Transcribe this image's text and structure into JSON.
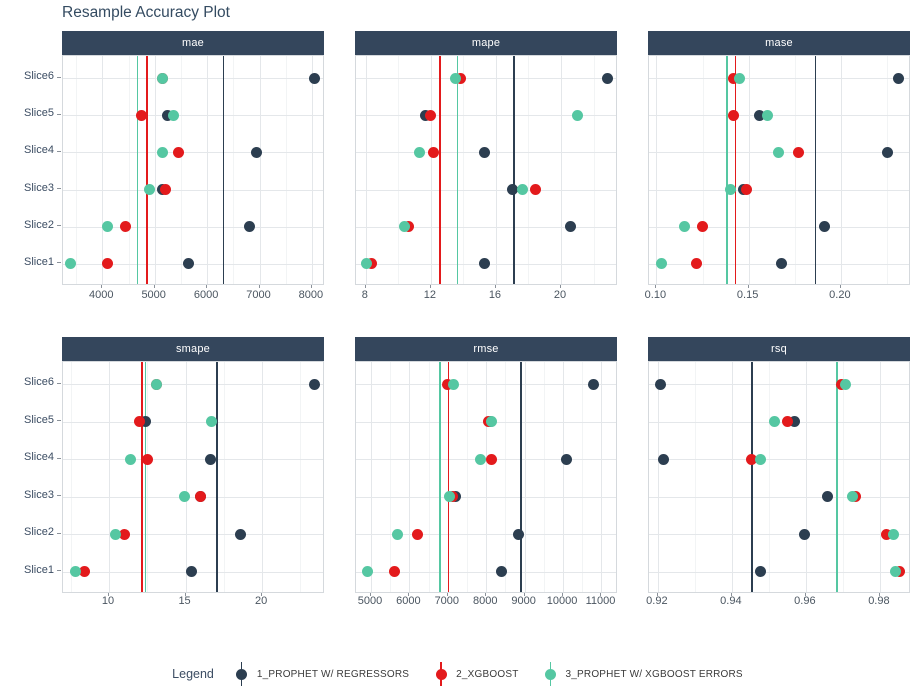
{
  "title": "Resample Accuracy Plot",
  "legend": {
    "title": "Legend",
    "entries": [
      {
        "label": "1_PROPHET W/ REGRESSORS",
        "color": "#2c3e50"
      },
      {
        "label": "2_XGBOOST",
        "color": "#e31a1c"
      },
      {
        "label": "3_PROPHET W/ XGBOOST ERRORS",
        "color": "#55c7a2"
      }
    ]
  },
  "slices_top_to_bottom": [
    "Slice6",
    "Slice5",
    "Slice4",
    "Slice3",
    "Slice2",
    "Slice1"
  ],
  "slices_order_of_values": [
    "Slice1",
    "Slice2",
    "Slice3",
    "Slice4",
    "Slice5",
    "Slice6"
  ],
  "colors": {
    "navy": "#2c3e50",
    "red": "#e31a1c",
    "teal": "#55c7a2",
    "strip_bg": "#34465c"
  },
  "chart_data": [
    {
      "type": "scatter",
      "metric": "mae",
      "xlim": [
        3250,
        8250
      ],
      "ticks": [
        {
          "v": 4000,
          "label": "4000"
        },
        {
          "v": 5000,
          "label": "5000"
        },
        {
          "v": 6000,
          "label": "6000"
        },
        {
          "v": 7000,
          "label": "7000"
        },
        {
          "v": 8000,
          "label": "8000"
        }
      ],
      "series": [
        {
          "name": "1_PROPHET W/ REGRESSORS",
          "color": "#2c3e50",
          "values": [
            5650,
            6800,
            5150,
            6950,
            5250,
            8050
          ]
        },
        {
          "name": "2_XGBOOST",
          "color": "#e31a1c",
          "values": [
            4100,
            4450,
            5200,
            5450,
            4750,
            5150
          ]
        },
        {
          "name": "3_PROPHET W/ XGBOOST ERRORS",
          "color": "#55c7a2",
          "values": [
            3400,
            4100,
            4900,
            5150,
            5350,
            5150
          ]
        }
      ],
      "mean_vlines": true
    },
    {
      "type": "scatter",
      "metric": "mape",
      "xlim": [
        7.4,
        23.5
      ],
      "ticks": [
        {
          "v": 8,
          "label": "8"
        },
        {
          "v": 12,
          "label": "12"
        },
        {
          "v": 16,
          "label": "16"
        },
        {
          "v": 20,
          "label": "20"
        }
      ],
      "series": [
        {
          "name": "1_PROPHET W/ REGRESSORS",
          "color": "#2c3e50",
          "values": [
            15.3,
            20.6,
            17.0,
            15.3,
            11.65,
            22.85
          ]
        },
        {
          "name": "2_XGBOOST",
          "color": "#e31a1c",
          "values": [
            8.35,
            10.65,
            18.4,
            12.15,
            11.95,
            13.85
          ]
        },
        {
          "name": "3_PROPHET W/ XGBOOST ERRORS",
          "color": "#55c7a2",
          "values": [
            8.05,
            10.35,
            17.65,
            11.3,
            21.0,
            13.5
          ]
        }
      ],
      "mean_vlines": true
    },
    {
      "type": "scatter",
      "metric": "mase",
      "xlim": [
        0.096,
        0.238
      ],
      "ticks": [
        {
          "v": 0.1,
          "label": "0.10"
        },
        {
          "v": 0.15,
          "label": "0.15"
        },
        {
          "v": 0.2,
          "label": "0.20"
        }
      ],
      "series": [
        {
          "name": "1_PROPHET W/ REGRESSORS",
          "color": "#2c3e50",
          "values": [
            0.168,
            0.191,
            0.147,
            0.225,
            0.156,
            0.231
          ]
        },
        {
          "name": "2_XGBOOST",
          "color": "#e31a1c",
          "values": [
            0.122,
            0.125,
            0.149,
            0.177,
            0.142,
            0.142
          ]
        },
        {
          "name": "3_PROPHET W/ XGBOOST ERRORS",
          "color": "#55c7a2",
          "values": [
            0.103,
            0.115,
            0.14,
            0.166,
            0.16,
            0.145
          ]
        }
      ],
      "mean_vlines": true
    },
    {
      "type": "scatter",
      "metric": "smape",
      "xlim": [
        7.0,
        24.1
      ],
      "ticks": [
        {
          "v": 10,
          "label": "10"
        },
        {
          "v": 15,
          "label": "15"
        },
        {
          "v": 20,
          "label": "20"
        }
      ],
      "series": [
        {
          "name": "1_PROPHET W/ REGRESSORS",
          "color": "#2c3e50",
          "values": [
            15.4,
            18.6,
            16.0,
            16.6,
            12.4,
            23.4
          ]
        },
        {
          "name": "2_XGBOOST",
          "color": "#e31a1c",
          "values": [
            8.4,
            11.0,
            16.0,
            12.5,
            12.0,
            13.1
          ]
        },
        {
          "name": "3_PROPHET W/ XGBOOST ERRORS",
          "color": "#55c7a2",
          "values": [
            7.8,
            10.4,
            14.9,
            11.4,
            16.7,
            13.1
          ]
        }
      ],
      "mean_vlines": true
    },
    {
      "type": "scatter",
      "metric": "rmse",
      "xlim": [
        4610,
        11430
      ],
      "ticks": [
        {
          "v": 5000,
          "label": "5000"
        },
        {
          "v": 6000,
          "label": "6000"
        },
        {
          "v": 7000,
          "label": "7000"
        },
        {
          "v": 8000,
          "label": "8000"
        },
        {
          "v": 9000,
          "label": "9000"
        },
        {
          "v": 10000,
          "label": "10000"
        },
        {
          "v": 11000,
          "label": "11000"
        }
      ],
      "series": [
        {
          "name": "1_PROPHET W/ REGRESSORS",
          "color": "#2c3e50",
          "values": [
            8400,
            8850,
            7200,
            10100,
            8100,
            10800
          ]
        },
        {
          "name": "2_XGBOOST",
          "color": "#e31a1c",
          "values": [
            5600,
            6200,
            7130,
            8150,
            8050,
            7000
          ]
        },
        {
          "name": "3_PROPHET W/ XGBOOST ERRORS",
          "color": "#55c7a2",
          "values": [
            4900,
            5700,
            7050,
            7850,
            8150,
            7150
          ]
        }
      ],
      "mean_vlines": true
    },
    {
      "type": "scatter",
      "metric": "rsq",
      "xlim": [
        0.9176,
        0.9884
      ],
      "ticks": [
        {
          "v": 0.92,
          "label": "0.92"
        },
        {
          "v": 0.94,
          "label": "0.94"
        },
        {
          "v": 0.96,
          "label": "0.96"
        },
        {
          "v": 0.98,
          "label": "0.98"
        }
      ],
      "series": [
        {
          "name": "1_PROPHET W/ REGRESSORS",
          "color": "#2c3e50",
          "values": [
            0.9476,
            0.9597,
            0.9659,
            0.9216,
            0.957,
            0.9206
          ]
        },
        {
          "name": "2_XGBOOST",
          "color": "#e31a1c",
          "values": [
            0.9852,
            0.9819,
            0.9735,
            0.9454,
            0.9551,
            0.9695
          ]
        },
        {
          "name": "3_PROPHET W/ XGBOOST ERRORS",
          "color": "#55c7a2",
          "values": [
            0.9841,
            0.9838,
            0.9727,
            0.9476,
            0.9514,
            0.9706
          ]
        }
      ],
      "mean_vlines": true
    }
  ]
}
